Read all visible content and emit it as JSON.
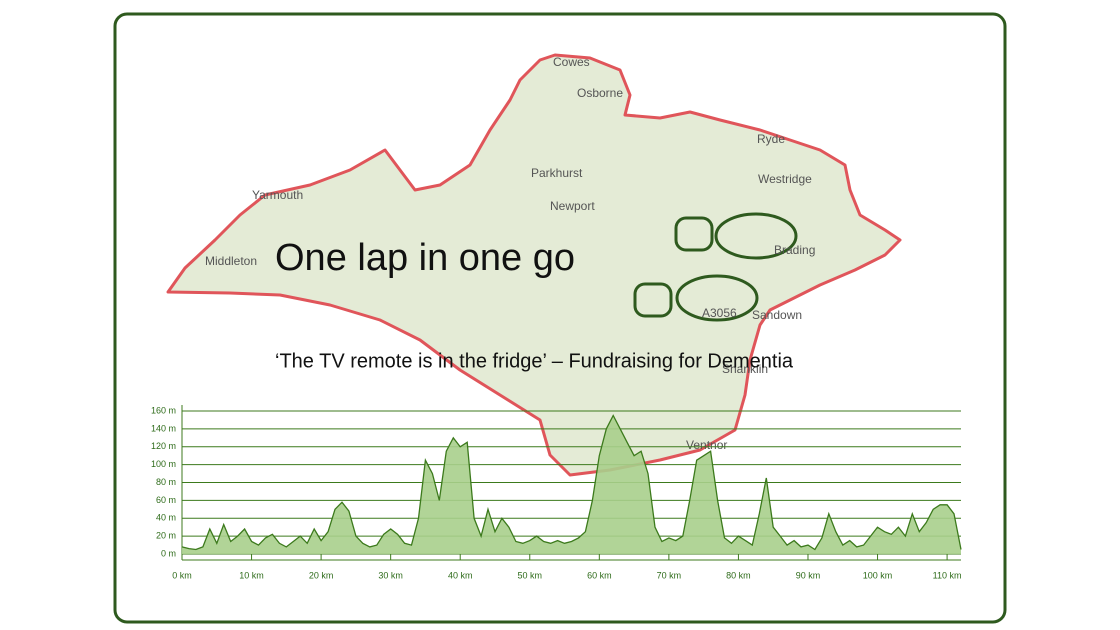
{
  "title": "One lap in one go",
  "subtitle": "‘The TV remote is in the fridge’ – Fundraising for Dementia",
  "map": {
    "labels": [
      "Cowes",
      "Osborne",
      "Ryde",
      "Westridge",
      "Parkhurst",
      "Newport",
      "Yarmouth",
      "Middleton",
      "Brading",
      "A3056",
      "Sandown",
      "Shanklin",
      "Ventnor"
    ]
  },
  "chart_data": {
    "type": "area",
    "color": "#3c7a1c",
    "fill": "#a9cf8c",
    "grid": true,
    "x": [
      0,
      1,
      2,
      3,
      4,
      5,
      6,
      7,
      8,
      9,
      10,
      11,
      12,
      13,
      14,
      15,
      16,
      17,
      18,
      19,
      20,
      21,
      22,
      23,
      24,
      25,
      26,
      27,
      28,
      29,
      30,
      31,
      32,
      33,
      34,
      35,
      36,
      37,
      38,
      39,
      40,
      41,
      42,
      43,
      44,
      45,
      46,
      47,
      48,
      49,
      50,
      51,
      52,
      53,
      54,
      55,
      56,
      57,
      58,
      59,
      60,
      61,
      62,
      63,
      64,
      65,
      66,
      67,
      68,
      69,
      70,
      71,
      72,
      73,
      74,
      75,
      76,
      77,
      78,
      79,
      80,
      81,
      82,
      83,
      84,
      85,
      86,
      87,
      88,
      89,
      90,
      91,
      92,
      93,
      94,
      95,
      96,
      97,
      98,
      99,
      100,
      101,
      102,
      103,
      104,
      105,
      106,
      107,
      108,
      109,
      110,
      111,
      112
    ],
    "values": [
      8,
      6,
      5,
      8,
      28,
      12,
      33,
      14,
      20,
      28,
      14,
      10,
      18,
      22,
      12,
      8,
      14,
      20,
      12,
      28,
      15,
      25,
      50,
      58,
      48,
      20,
      12,
      8,
      10,
      22,
      28,
      22,
      12,
      10,
      40,
      105,
      90,
      60,
      115,
      130,
      120,
      125,
      40,
      20,
      50,
      25,
      40,
      30,
      14,
      12,
      15,
      20,
      14,
      12,
      15,
      12,
      14,
      18,
      25,
      60,
      110,
      140,
      155,
      140,
      125,
      110,
      115,
      90,
      30,
      14,
      18,
      15,
      20,
      60,
      105,
      110,
      115,
      60,
      18,
      12,
      20,
      15,
      10,
      45,
      85,
      30,
      20,
      10,
      15,
      8,
      10,
      5,
      18,
      45,
      25,
      10,
      15,
      8,
      10,
      20,
      30,
      25,
      22,
      30,
      20,
      45,
      25,
      35,
      50,
      55,
      55,
      45,
      5
    ],
    "xlim": [
      0,
      112
    ],
    "xticks": [
      {
        "value": 0,
        "label": "0 km"
      },
      {
        "value": 10,
        "label": "10 km"
      },
      {
        "value": 20,
        "label": "20 km"
      },
      {
        "value": 30,
        "label": "30 km"
      },
      {
        "value": 40,
        "label": "40 km"
      },
      {
        "value": 50,
        "label": "50 km"
      },
      {
        "value": 60,
        "label": "60 km"
      },
      {
        "value": 70,
        "label": "70 km"
      },
      {
        "value": 80,
        "label": "80 km"
      },
      {
        "value": 90,
        "label": "90 km"
      },
      {
        "value": 100,
        "label": "100 km"
      },
      {
        "value": 110,
        "label": "110 km"
      }
    ],
    "ylim": [
      0,
      160
    ],
    "yticks": [
      {
        "value": 0,
        "label": "0 m"
      },
      {
        "value": 20,
        "label": "20 m"
      },
      {
        "value": 40,
        "label": "40 m"
      },
      {
        "value": 60,
        "label": "60 m"
      },
      {
        "value": 80,
        "label": "80 m"
      },
      {
        "value": 100,
        "label": "100 m"
      },
      {
        "value": 120,
        "label": "120 m"
      },
      {
        "value": 140,
        "label": "140 m"
      },
      {
        "value": 160,
        "label": "160 m"
      }
    ]
  }
}
